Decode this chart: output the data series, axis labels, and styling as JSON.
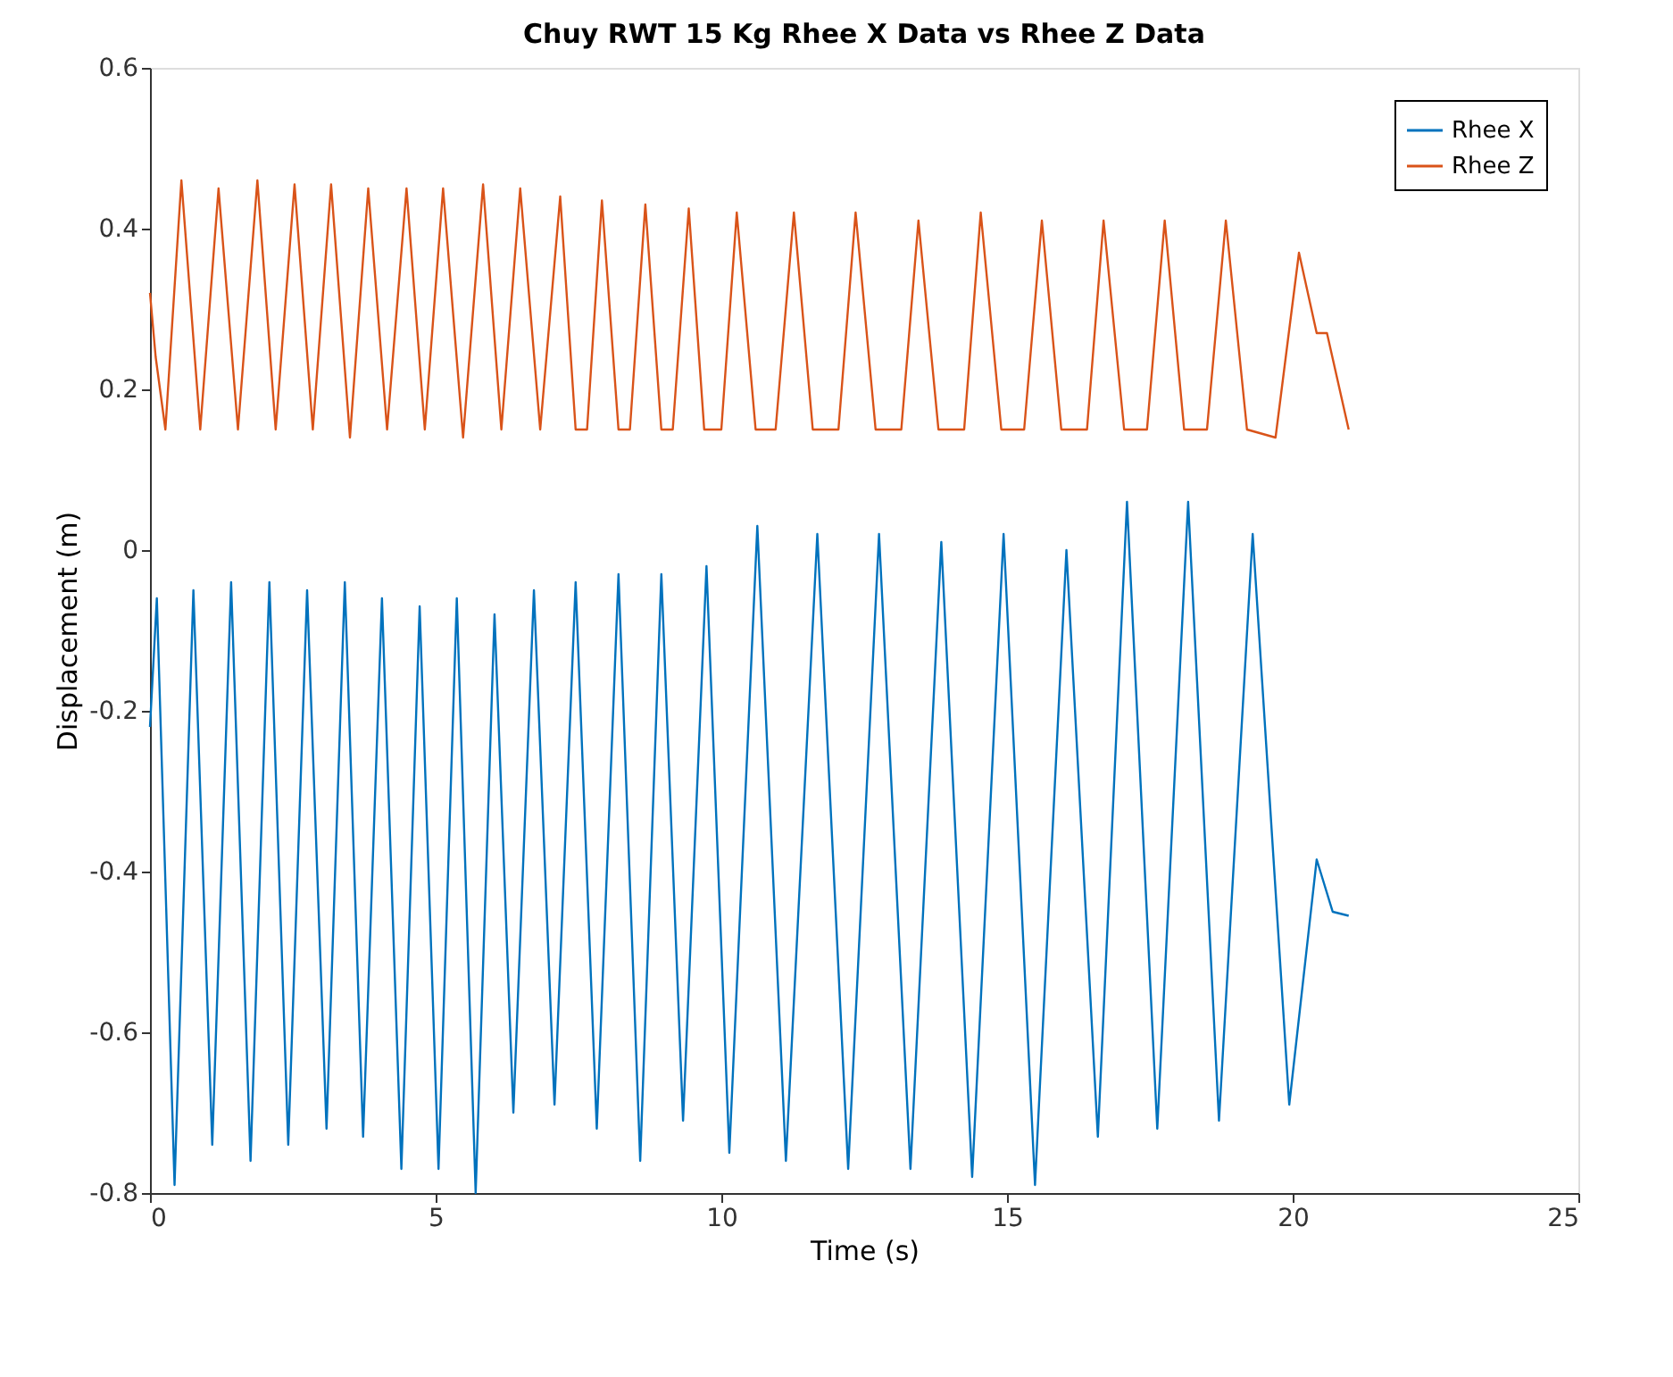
{
  "chart_data": {
    "type": "line",
    "title": "Chuy RWT 15 Kg Rhee X Data vs Rhee Z Data",
    "xlabel": "Time (s)",
    "ylabel": "Displacement (m)",
    "xlim": [
      0,
      25
    ],
    "xticks": [
      0,
      5,
      10,
      15,
      20,
      25
    ],
    "ylim": [
      -0.8,
      0.6
    ],
    "yticks": [
      -0.8,
      -0.6,
      -0.4,
      -0.2,
      0,
      0.2,
      0.4,
      0.6
    ],
    "grid": false,
    "legend": "top right",
    "marker": "none",
    "line_style": "solid",
    "series": [
      {
        "name": "Rhee X",
        "color": "#0072bd",
        "x": [
          0,
          0.12,
          0.43,
          0.76,
          1.09,
          1.42,
          1.76,
          2.09,
          2.42,
          2.75,
          3.09,
          3.41,
          3.73,
          4.06,
          4.4,
          4.72,
          5.05,
          5.37,
          5.7,
          6.03,
          6.36,
          6.72,
          7.08,
          7.45,
          7.82,
          8.2,
          8.58,
          8.95,
          9.33,
          9.74,
          10.14,
          10.63,
          11.13,
          11.68,
          12.22,
          12.76,
          13.31,
          13.85,
          14.39,
          14.94,
          15.49,
          16.04,
          16.59,
          17.1,
          17.63,
          18.17,
          18.71,
          19.3,
          19.94,
          20.42,
          20.7,
          20.98
        ],
        "values": [
          -0.22,
          -0.06,
          -0.79,
          -0.05,
          -0.74,
          -0.04,
          -0.76,
          -0.04,
          -0.74,
          -0.05,
          -0.72,
          -0.04,
          -0.73,
          -0.06,
          -0.77,
          -0.07,
          -0.77,
          -0.06,
          -0.8,
          -0.08,
          -0.7,
          -0.05,
          -0.69,
          -0.04,
          -0.72,
          -0.03,
          -0.76,
          -0.03,
          -0.71,
          -0.02,
          -0.75,
          0.03,
          -0.76,
          0.02,
          -0.77,
          0.02,
          -0.77,
          0.01,
          -0.78,
          0.02,
          -0.79,
          0.0,
          -0.73,
          0.06,
          -0.72,
          0.06,
          -0.71,
          0.02,
          -0.69,
          -0.385,
          -0.45,
          -0.455
        ]
      },
      {
        "name": "Rhee Z",
        "color": "#d95319",
        "x": [
          0,
          0.1,
          0.27,
          0.55,
          0.88,
          1.2,
          1.54,
          1.88,
          2.2,
          2.53,
          2.85,
          3.17,
          3.5,
          3.82,
          4.15,
          4.49,
          4.81,
          5.13,
          5.48,
          5.83,
          6.15,
          6.48,
          6.83,
          7.18,
          7.45,
          7.65,
          7.91,
          8.2,
          8.4,
          8.67,
          8.95,
          9.15,
          9.43,
          9.7,
          10.0,
          10.27,
          10.6,
          10.95,
          11.27,
          11.6,
          12.05,
          12.35,
          12.7,
          13.15,
          13.45,
          13.8,
          14.25,
          14.54,
          14.9,
          15.3,
          15.61,
          15.95,
          16.4,
          16.69,
          17.05,
          17.45,
          17.76,
          18.1,
          18.5,
          18.83,
          19.2,
          19.7,
          20.11,
          20.42,
          20.6,
          20.98
        ],
        "values": [
          0.32,
          0.24,
          0.15,
          0.46,
          0.15,
          0.45,
          0.15,
          0.46,
          0.15,
          0.455,
          0.15,
          0.455,
          0.14,
          0.45,
          0.15,
          0.45,
          0.15,
          0.45,
          0.14,
          0.455,
          0.15,
          0.45,
          0.15,
          0.44,
          0.15,
          0.15,
          0.435,
          0.15,
          0.15,
          0.43,
          0.15,
          0.15,
          0.425,
          0.15,
          0.15,
          0.42,
          0.15,
          0.15,
          0.42,
          0.15,
          0.15,
          0.42,
          0.15,
          0.15,
          0.41,
          0.15,
          0.15,
          0.42,
          0.15,
          0.15,
          0.41,
          0.15,
          0.15,
          0.41,
          0.15,
          0.15,
          0.41,
          0.15,
          0.15,
          0.41,
          0.15,
          0.14,
          0.37,
          0.27,
          0.27,
          0.15
        ]
      }
    ]
  }
}
